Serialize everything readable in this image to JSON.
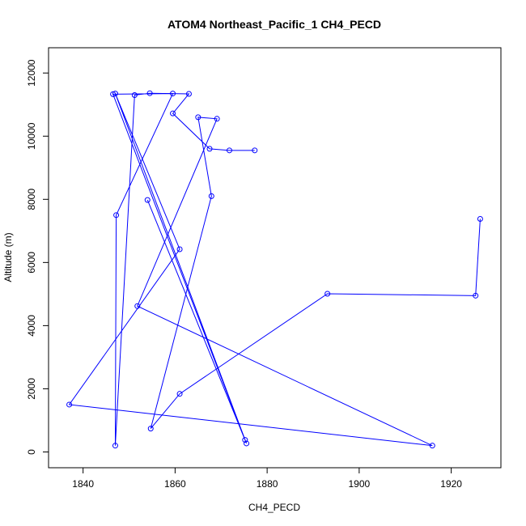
{
  "chart_data": {
    "type": "line",
    "title": "ATOM4 Northeast_Pacific_1 CH4_PECD",
    "xlabel": "CH4_PECD",
    "ylabel": "Altitude (m)",
    "xlim": [
      1832.5,
      1930.8
    ],
    "ylim": [
      -500,
      12800
    ],
    "x_ticks": [
      1840,
      1860,
      1880,
      1900,
      1920
    ],
    "y_ticks": [
      0,
      2000,
      4000,
      6000,
      8000,
      10000,
      12000
    ],
    "grid": false,
    "legend": "none",
    "marker": "open-circle",
    "color": "#0000ff",
    "series": [
      {
        "points": [
          {
            "x": 1926.3,
            "y": 7380
          },
          {
            "x": 1925.3,
            "y": 4950
          },
          {
            "x": 1893.1,
            "y": 5010
          },
          {
            "x": 1861.0,
            "y": 1840
          },
          {
            "x": 1854.7,
            "y": 740
          },
          {
            "x": 1867.9,
            "y": 8100
          },
          {
            "x": 1865.0,
            "y": 10600
          },
          {
            "x": 1869.1,
            "y": 10550
          },
          {
            "x": 1851.8,
            "y": 4620
          },
          {
            "x": 1915.9,
            "y": 200
          },
          {
            "x": 1837.0,
            "y": 1500
          },
          {
            "x": 1861.0,
            "y": 6420
          },
          {
            "x": 1847.0,
            "y": 11350
          },
          {
            "x": 1875.5,
            "y": 270
          },
          {
            "x": 1854.0,
            "y": 7980
          },
          {
            "x": 1875.2,
            "y": 380
          },
          {
            "x": 1846.5,
            "y": 11330
          },
          {
            "x": 1859.5,
            "y": 11350
          },
          {
            "x": 1847.2,
            "y": 7500
          },
          {
            "x": 1847.0,
            "y": 200
          },
          {
            "x": 1851.2,
            "y": 11300
          },
          {
            "x": 1854.5,
            "y": 11360
          },
          {
            "x": 1863.0,
            "y": 11340
          },
          {
            "x": 1859.5,
            "y": 10720
          },
          {
            "x": 1867.5,
            "y": 9600
          },
          {
            "x": 1871.8,
            "y": 9550
          },
          {
            "x": 1877.3,
            "y": 9550
          }
        ]
      }
    ]
  }
}
